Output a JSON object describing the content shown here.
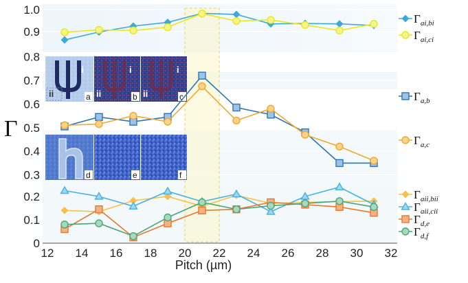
{
  "chart_data": {
    "type": "line",
    "xlabel": "Pitch (µm)",
    "ylabel": "Γ",
    "xlim": [
      12,
      32
    ],
    "x_ticks": [
      "12",
      "14",
      "16",
      "18",
      "20",
      "22",
      "24",
      "26",
      "28",
      "30",
      "32"
    ],
    "y_ticks_top": [
      "0.3",
      "0.4",
      "0.5",
      "0.6",
      "0.7",
      "0.8",
      "0.9",
      "1.0"
    ],
    "y_ticks_bottom": [
      "0",
      "0.1",
      "0.2"
    ],
    "highlight_x": [
      20,
      22
    ],
    "legend_top": [
      {
        "main": "Γ",
        "sub": "ai,bi"
      },
      {
        "main": "Γ",
        "sub": "ai,ci"
      }
    ],
    "legend_mid": [
      {
        "main": "Γ",
        "sub": "a,b"
      },
      {
        "main": "Γ",
        "sub": "a,c"
      }
    ],
    "legend_bottom": [
      {
        "main": "Γ",
        "sub": "aii,bii"
      },
      {
        "main": "Γ",
        "sub": "aii,cii"
      },
      {
        "main": "Γ",
        "sub": "d,e"
      },
      {
        "main": "Γ",
        "sub": "d,f"
      }
    ],
    "panels": {
      "top": {
        "ylim": [
          0.84,
          1.0
        ]
      },
      "mid": {
        "ylim": [
          0.28,
          0.78
        ]
      },
      "bottom": {
        "ylim": [
          0,
          0.25
        ]
      }
    },
    "series": [
      {
        "key": "ai_bi",
        "panel": "top",
        "color": "#3fa9d6",
        "marker": "diamond",
        "fill": "#3fa9d6",
        "x": [
          13,
          15,
          17,
          19,
          21,
          23,
          25,
          27,
          29,
          31
        ],
        "y": [
          0.862,
          0.898,
          0.925,
          0.942,
          0.983,
          0.978,
          0.935,
          0.937,
          0.935,
          0.928
        ]
      },
      {
        "key": "ai_ci",
        "panel": "top",
        "color": "#e8e81a",
        "marker": "circle",
        "fill": "#f4f48a",
        "x": [
          13,
          15,
          17,
          19,
          21,
          23,
          25,
          27,
          29,
          31
        ],
        "y": [
          0.897,
          0.908,
          0.905,
          0.92,
          0.982,
          0.948,
          0.953,
          0.93,
          0.905,
          0.935
        ]
      },
      {
        "key": "a_b",
        "panel": "mid",
        "color": "#2e74b5",
        "marker": "square",
        "fill": "#9dc3e6",
        "x": [
          13,
          15,
          17,
          19,
          21,
          23,
          25,
          27,
          29,
          31
        ],
        "y": [
          0.505,
          0.545,
          0.525,
          0.545,
          0.72,
          0.585,
          0.555,
          0.48,
          0.35,
          0.35
        ]
      },
      {
        "key": "a_c",
        "panel": "mid",
        "color": "#f0a830",
        "marker": "circle",
        "fill": "#fad38a",
        "x": [
          13,
          15,
          17,
          19,
          21,
          23,
          25,
          27,
          29,
          31
        ],
        "y": [
          0.51,
          0.515,
          0.55,
          0.525,
          0.675,
          0.53,
          0.58,
          0.47,
          0.42,
          0.36
        ]
      },
      {
        "key": "aii_bii",
        "panel": "bottom",
        "color": "#f6c14a",
        "marker": "diamond",
        "fill": "#f6c14a",
        "x": [
          13,
          15,
          17,
          19,
          21,
          23,
          25,
          27,
          29,
          31
        ],
        "y": [
          0.14,
          0.135,
          0.182,
          0.2,
          0.158,
          0.205,
          0.17,
          0.175,
          0.178,
          0.18
        ]
      },
      {
        "key": "aii_cii",
        "panel": "bottom",
        "color": "#48b0e0",
        "marker": "triangle",
        "fill": "#9fd6f0",
        "x": [
          13,
          15,
          17,
          19,
          21,
          23,
          25,
          27,
          29,
          31
        ],
        "y": [
          0.225,
          0.2,
          0.158,
          0.222,
          0.178,
          0.21,
          0.135,
          0.2,
          0.24,
          0.165
        ]
      },
      {
        "key": "d_e",
        "panel": "bottom",
        "color": "#e8772e",
        "marker": "square",
        "fill": "#f4b183",
        "x": [
          13,
          15,
          17,
          19,
          21,
          23,
          25,
          27,
          29,
          31
        ],
        "y": [
          0.06,
          0.145,
          0.025,
          0.085,
          0.14,
          0.145,
          0.175,
          0.165,
          0.155,
          0.13
        ]
      },
      {
        "key": "d_f",
        "panel": "bottom",
        "color": "#4aa57a",
        "marker": "circle",
        "fill": "#a9d8bd",
        "x": [
          13,
          15,
          17,
          19,
          21,
          23,
          25,
          27,
          29,
          31
        ],
        "y": [
          0.08,
          0.085,
          0.03,
          0.11,
          0.175,
          0.145,
          0.16,
          0.17,
          0.18,
          0.155
        ]
      }
    ],
    "insets": {
      "letters": [
        "a",
        "b",
        "c",
        "d",
        "e",
        "f"
      ],
      "roman_i": "i",
      "roman_ii": "ii"
    }
  }
}
